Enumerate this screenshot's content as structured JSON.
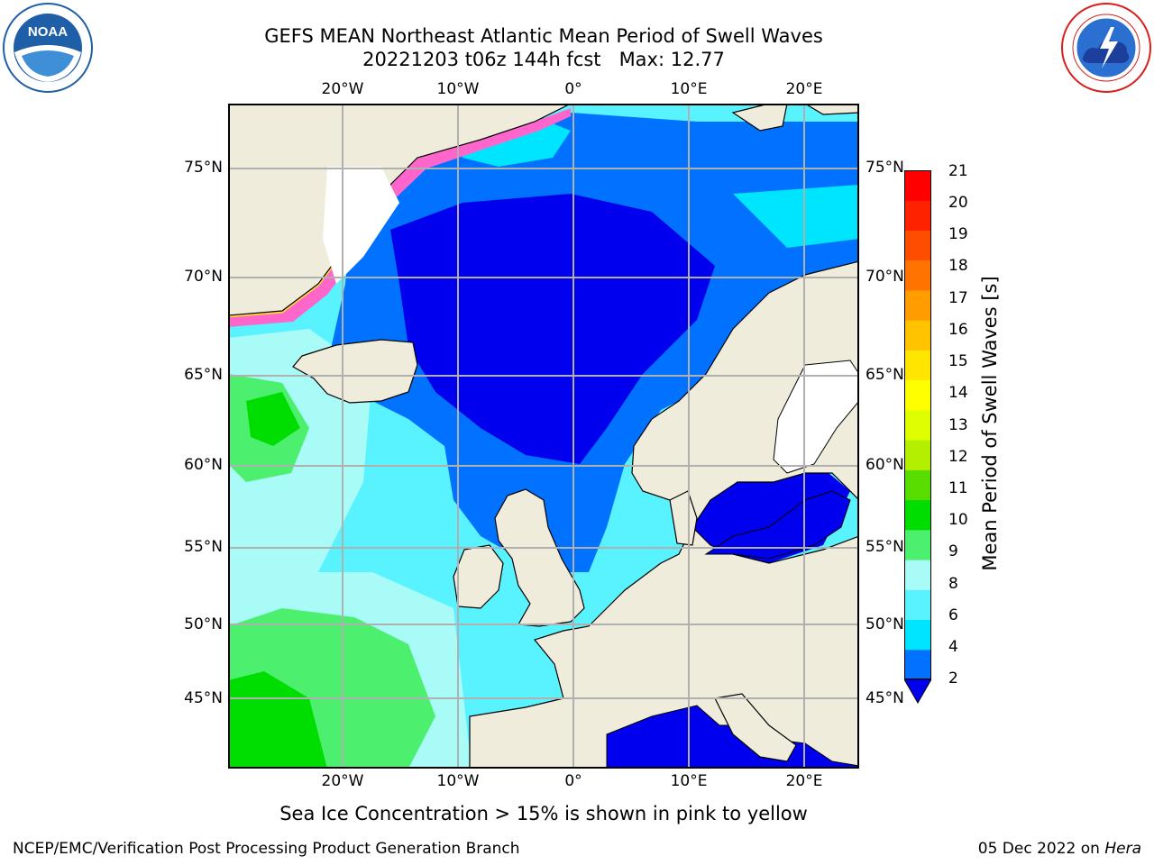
{
  "title": {
    "line1": "GEFS MEAN Northeast Atlantic Mean Period of Swell Waves",
    "line2": "20221203 t06z 144h fcst   Max: 12.77"
  },
  "logos": {
    "noaa": {
      "text": "NOAA",
      "ring_text": "NATIONAL OCEANIC AND ATMOSPHERIC ADMINISTRATION · U.S. DEPARTMENT OF COMMERCE",
      "color": "#1f5fa8"
    },
    "nws": {
      "ring_text": "NATIONAL WEATHER SERVICE",
      "color": "#d81e1e"
    }
  },
  "map": {
    "lon_labels": [
      "20°W",
      "10°W",
      "0°",
      "10°E",
      "20°E"
    ],
    "lat_labels": [
      "75°N",
      "70°N",
      "65°N",
      "60°N",
      "55°N",
      "50°N",
      "45°N"
    ],
    "colors": {
      "land": "#efecdc",
      "frame": "#000000",
      "grid": "#b0b0b0",
      "sea_ice": "#ff66cc"
    }
  },
  "colorbar": {
    "label": "Mean Period of Swell Waves [s]",
    "ticks": [
      "21",
      "20",
      "19",
      "18",
      "17",
      "16",
      "15",
      "14",
      "13",
      "12",
      "11",
      "10",
      "9",
      "8",
      "6",
      "4",
      "2"
    ],
    "colors_bottom_to_top": [
      "#0072ff",
      "#00e5ff",
      "#59f3ff",
      "#a9fbf8",
      "#4df06e",
      "#00dd00",
      "#59dd00",
      "#b4ee00",
      "#ddff00",
      "#ffff00",
      "#ffe500",
      "#ffc300",
      "#ff9c00",
      "#ff7400",
      "#ff4d00",
      "#ff2200",
      "#ff0000"
    ],
    "under_color": "#0000ee"
  },
  "note": "Sea Ice Concentration > 15% is shown in pink to yellow",
  "footer": {
    "left": "NCEP/EMC/Verification Post Processing Product Generation Branch",
    "right_prefix": "05 Dec 2022 on ",
    "right_machine": "Hera"
  }
}
